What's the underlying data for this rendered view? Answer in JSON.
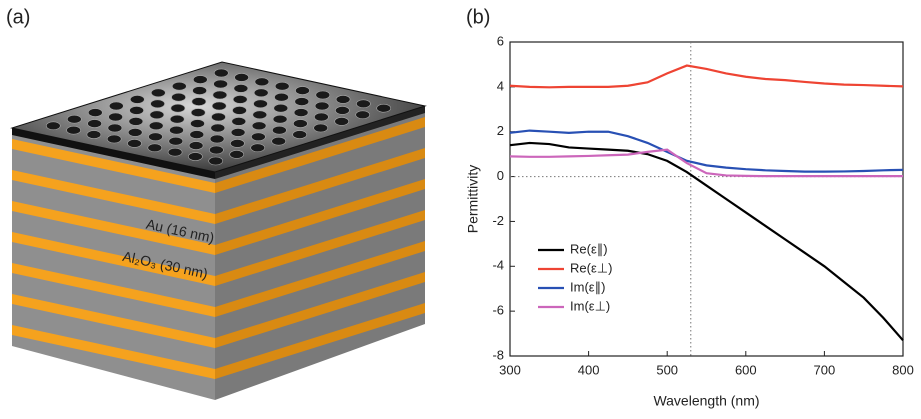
{
  "panel_labels": [
    "(a)",
    "(b)"
  ],
  "illustration": {
    "labels": [
      "Au (16 nm)",
      "Al₂O₃ (30 nm)"
    ]
  },
  "chart_data": {
    "type": "line",
    "xlabel": "Wavelength (nm)",
    "ylabel": "Permittivity",
    "x": [
      300,
      325,
      350,
      375,
      400,
      425,
      450,
      475,
      500,
      525,
      550,
      575,
      600,
      625,
      650,
      675,
      700,
      725,
      750,
      775,
      800
    ],
    "series": [
      {
        "name": "Re(ε∥)",
        "color": "#000000",
        "values": [
          1.4,
          1.5,
          1.45,
          1.3,
          1.25,
          1.2,
          1.15,
          1.0,
          0.7,
          0.2,
          -0.4,
          -1.0,
          -1.6,
          -2.2,
          -2.8,
          -3.4,
          -4.0,
          -4.7,
          -5.4,
          -6.3,
          -7.3
        ]
      },
      {
        "name": "Re(ε⊥)",
        "color": "#ee4433",
        "values": [
          4.05,
          4.0,
          3.98,
          4.0,
          4.0,
          4.0,
          4.05,
          4.2,
          4.6,
          4.95,
          4.8,
          4.6,
          4.45,
          4.35,
          4.3,
          4.22,
          4.15,
          4.1,
          4.08,
          4.05,
          4.02
        ]
      },
      {
        "name": "Im(ε∥)",
        "color": "#2850b4",
        "values": [
          1.95,
          2.05,
          2.0,
          1.95,
          2.0,
          2.0,
          1.8,
          1.5,
          1.1,
          0.7,
          0.5,
          0.4,
          0.33,
          0.28,
          0.25,
          0.22,
          0.22,
          0.23,
          0.25,
          0.28,
          0.3
        ]
      },
      {
        "name": "Im(ε⊥)",
        "color": "#cc66bb",
        "values": [
          0.9,
          0.88,
          0.88,
          0.9,
          0.92,
          0.95,
          0.98,
          1.1,
          1.2,
          0.6,
          0.15,
          0.05,
          0.03,
          0.02,
          0.02,
          0.02,
          0.02,
          0.02,
          0.02,
          0.02,
          0.02
        ]
      }
    ],
    "reference_lines": {
      "x": 530,
      "y": 0
    },
    "xlim": [
      300,
      800
    ],
    "xticks": [
      300,
      400,
      500,
      600,
      700,
      800
    ],
    "ylim": [
      -8,
      6
    ],
    "yticks": [
      -8,
      -6,
      -4,
      -2,
      0,
      2,
      4,
      6
    ],
    "legend": "lower left",
    "grid": false
  }
}
